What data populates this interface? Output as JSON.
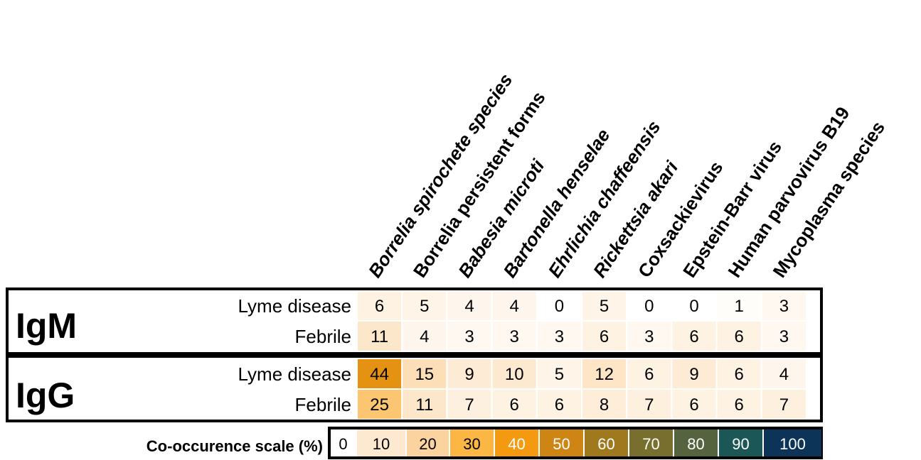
{
  "chart_data": {
    "type": "heatmap",
    "columns": [
      {
        "label": "Borrelia spirochete species",
        "italic": true
      },
      {
        "label": "Borrelia persistent forms",
        "italic": false
      },
      {
        "label": "Babesia microti",
        "italic": true
      },
      {
        "label": "Bartonella henselae",
        "italic": true
      },
      {
        "label": "Ehrlichia chaffeensis",
        "italic": true
      },
      {
        "label": "Rickettsia akari",
        "italic": true
      },
      {
        "label": "Coxsackievirus",
        "italic": false
      },
      {
        "label": "Epstein-Barr virus",
        "italic": false
      },
      {
        "label": "Human parvovirus B19",
        "italic": false
      },
      {
        "label": "Mycoplasma species",
        "italic": false
      }
    ],
    "groups": [
      {
        "name": "IgM",
        "rows": [
          {
            "label": "Lyme disease",
            "values": [
              6,
              5,
              4,
              4,
              0,
              5,
              0,
              0,
              1,
              3
            ]
          },
          {
            "label": "Febrile",
            "values": [
              11,
              4,
              3,
              3,
              3,
              6,
              3,
              6,
              6,
              3
            ]
          }
        ]
      },
      {
        "name": "IgG",
        "rows": [
          {
            "label": "Lyme disease",
            "values": [
              44,
              15,
              9,
              10,
              5,
              12,
              6,
              9,
              6,
              4
            ]
          },
          {
            "label": "Febrile",
            "values": [
              25,
              11,
              7,
              6,
              6,
              8,
              7,
              6,
              6,
              7
            ]
          }
        ]
      }
    ],
    "scale": {
      "title": "Co-occurence scale (%)",
      "stops": [
        {
          "value": 0,
          "color": "#ffffff"
        },
        {
          "value": 10,
          "color": "#fde9d0"
        },
        {
          "value": 20,
          "color": "#fbd39e"
        },
        {
          "value": 30,
          "color": "#fbb644"
        },
        {
          "value": 40,
          "color": "#f39a10"
        },
        {
          "value": 50,
          "color": "#cf8514"
        },
        {
          "value": 60,
          "color": "#a0781e"
        },
        {
          "value": 70,
          "color": "#786f2e"
        },
        {
          "value": 80,
          "color": "#55633f"
        },
        {
          "value": 90,
          "color": "#1c5758"
        },
        {
          "value": 100,
          "color": "#0c3358"
        }
      ],
      "labels": [
        "0",
        "10",
        "20",
        "30",
        "40",
        "50",
        "60",
        "70",
        "80",
        "90",
        "100"
      ]
    }
  }
}
